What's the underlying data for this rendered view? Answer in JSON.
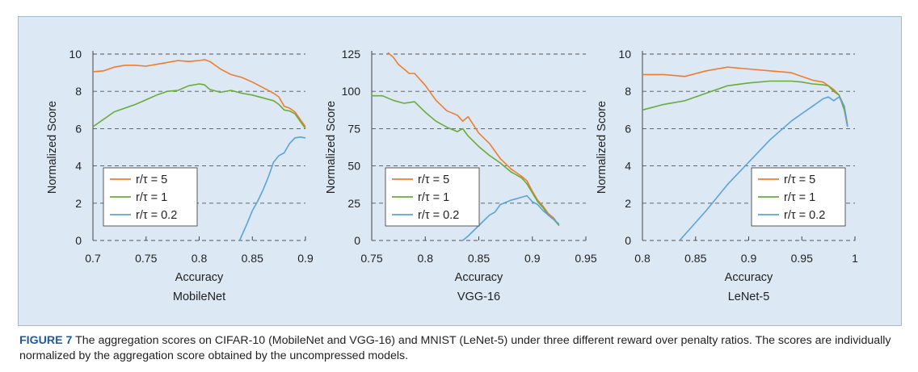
{
  "caption": {
    "label": "FIGURE 7",
    "text": "The aggregation scores on CIFAR-10 (MobileNet and VGG-16) and MNIST (LeNet-5) under three different reward over penalty ratios. The scores are individually normalized by the aggregation score obtained by the uncompressed models."
  },
  "colors": {
    "panel": "#dce8f3",
    "orange": "#f07d2e",
    "green": "#6aab3a",
    "blue": "#5ba3d9",
    "caption_label": "#1b5aa6"
  },
  "chart_data": [
    {
      "type": "line",
      "subtitle": "MobileNet",
      "xlabel": "Accuracy",
      "ylabel": "Normalized Score",
      "xlim": [
        0.7,
        0.9
      ],
      "ylim": [
        0,
        10
      ],
      "xticks": [
        "0.7",
        "0.75",
        "0.8",
        "0.85",
        "0.9"
      ],
      "yticks": [
        "0",
        "2",
        "4",
        "6",
        "8",
        "10"
      ],
      "grid": "dashed horizontal",
      "legend_placement": "lower-left",
      "series": [
        {
          "name": "r/τ = 5",
          "color": "orange",
          "x": [
            0.7,
            0.71,
            0.72,
            0.73,
            0.74,
            0.75,
            0.76,
            0.77,
            0.78,
            0.79,
            0.8,
            0.805,
            0.81,
            0.82,
            0.83,
            0.84,
            0.85,
            0.86,
            0.87,
            0.875,
            0.88,
            0.885,
            0.89,
            0.9
          ],
          "y": [
            9.05,
            9.1,
            9.3,
            9.4,
            9.4,
            9.35,
            9.45,
            9.55,
            9.65,
            9.6,
            9.65,
            9.7,
            9.6,
            9.2,
            8.9,
            8.75,
            8.5,
            8.2,
            7.9,
            7.7,
            7.2,
            7.1,
            6.9,
            6.1
          ]
        },
        {
          "name": "r/τ = 1",
          "color": "green",
          "x": [
            0.7,
            0.71,
            0.72,
            0.73,
            0.74,
            0.75,
            0.76,
            0.77,
            0.78,
            0.79,
            0.8,
            0.805,
            0.81,
            0.82,
            0.83,
            0.84,
            0.85,
            0.86,
            0.87,
            0.875,
            0.88,
            0.885,
            0.89,
            0.9
          ],
          "y": [
            6.1,
            6.5,
            6.9,
            7.1,
            7.3,
            7.55,
            7.8,
            8.0,
            8.05,
            8.3,
            8.4,
            8.35,
            8.1,
            7.95,
            8.05,
            7.9,
            7.8,
            7.65,
            7.5,
            7.3,
            7.0,
            6.95,
            6.8,
            6.0
          ]
        },
        {
          "name": "r/τ = 0.2",
          "color": "blue",
          "x": [
            0.838,
            0.845,
            0.85,
            0.855,
            0.86,
            0.865,
            0.87,
            0.875,
            0.88,
            0.885,
            0.89,
            0.895,
            0.9
          ],
          "y": [
            0,
            0.9,
            1.6,
            2.1,
            2.7,
            3.4,
            4.2,
            4.55,
            4.7,
            5.2,
            5.5,
            5.55,
            5.5
          ]
        }
      ]
    },
    {
      "type": "line",
      "subtitle": "VGG-16",
      "xlabel": "Accuracy",
      "ylabel": "Normalized Score",
      "xlim": [
        0.75,
        0.95
      ],
      "ylim": [
        0,
        125
      ],
      "xticks": [
        "0.75",
        "0.8",
        "0.85",
        "0.9",
        "0.95"
      ],
      "yticks": [
        "0",
        "25",
        "50",
        "75",
        "100",
        "125"
      ],
      "grid": "dashed horizontal",
      "legend_placement": "lower-center",
      "series": [
        {
          "name": "r/τ = 5",
          "color": "orange",
          "x": [
            0.765,
            0.77,
            0.775,
            0.78,
            0.785,
            0.79,
            0.8,
            0.81,
            0.82,
            0.83,
            0.835,
            0.84,
            0.85,
            0.86,
            0.87,
            0.88,
            0.89,
            0.895,
            0.9,
            0.905,
            0.91,
            0.915,
            0.92,
            0.925
          ],
          "y": [
            126,
            123,
            118,
            115,
            112,
            112,
            104,
            94,
            87,
            84,
            80,
            83,
            72,
            65,
            55,
            48,
            43,
            40,
            33,
            27,
            23,
            18,
            15,
            10
          ]
        },
        {
          "name": "r/τ = 1",
          "color": "green",
          "x": [
            0.75,
            0.76,
            0.77,
            0.78,
            0.79,
            0.8,
            0.81,
            0.82,
            0.83,
            0.835,
            0.84,
            0.85,
            0.86,
            0.87,
            0.88,
            0.89,
            0.895,
            0.9,
            0.905,
            0.91,
            0.915,
            0.92,
            0.925
          ],
          "y": [
            97,
            97,
            94,
            92,
            93,
            86,
            80,
            76,
            73,
            75,
            70,
            63,
            57,
            52,
            46,
            42,
            38,
            32,
            26,
            22,
            17,
            14,
            10
          ]
        },
        {
          "name": "r/τ = 0.2",
          "color": "blue",
          "x": [
            0.835,
            0.84,
            0.85,
            0.86,
            0.865,
            0.87,
            0.88,
            0.885,
            0.89,
            0.895,
            0.9,
            0.905,
            0.91,
            0.915,
            0.92,
            0.925
          ],
          "y": [
            0,
            3,
            10,
            17,
            19,
            24,
            27,
            28,
            29,
            30,
            26,
            24,
            20,
            17,
            14,
            11
          ]
        }
      ]
    },
    {
      "type": "line",
      "subtitle": "LeNet-5",
      "xlabel": "Accuracy",
      "ylabel": "Normalized Score",
      "xlim": [
        0.8,
        1
      ],
      "ylim": [
        0,
        10
      ],
      "xticks": [
        "0.8",
        "0.85",
        "0.9",
        "0.95",
        "1"
      ],
      "yticks": [
        "0",
        "2",
        "4",
        "6",
        "8",
        "10"
      ],
      "grid": "dashed horizontal",
      "legend_placement": "lower-right",
      "series": [
        {
          "name": "r/τ = 5",
          "color": "orange",
          "x": [
            0.8,
            0.82,
            0.84,
            0.86,
            0.88,
            0.9,
            0.92,
            0.94,
            0.95,
            0.96,
            0.97,
            0.975,
            0.98,
            0.985,
            0.99,
            0.993
          ],
          "y": [
            8.9,
            8.9,
            8.8,
            9.1,
            9.3,
            9.2,
            9.1,
            9.0,
            8.8,
            8.6,
            8.5,
            8.3,
            8.1,
            7.8,
            7.2,
            6.2
          ]
        },
        {
          "name": "r/τ = 1",
          "color": "green",
          "x": [
            0.8,
            0.82,
            0.84,
            0.86,
            0.88,
            0.9,
            0.92,
            0.94,
            0.95,
            0.96,
            0.97,
            0.975,
            0.98,
            0.985,
            0.99,
            0.993
          ],
          "y": [
            7.0,
            7.3,
            7.5,
            7.9,
            8.3,
            8.45,
            8.55,
            8.55,
            8.5,
            8.4,
            8.35,
            8.3,
            8.0,
            7.8,
            7.0,
            6.1
          ]
        },
        {
          "name": "r/τ = 0.2",
          "color": "blue",
          "x": [
            0.835,
            0.86,
            0.88,
            0.9,
            0.92,
            0.94,
            0.95,
            0.96,
            0.97,
            0.975,
            0.98,
            0.985,
            0.99,
            0.993
          ],
          "y": [
            0,
            1.6,
            3.0,
            4.2,
            5.4,
            6.4,
            6.8,
            7.2,
            7.6,
            7.7,
            7.5,
            7.7,
            7.2,
            6.1
          ]
        }
      ]
    }
  ]
}
